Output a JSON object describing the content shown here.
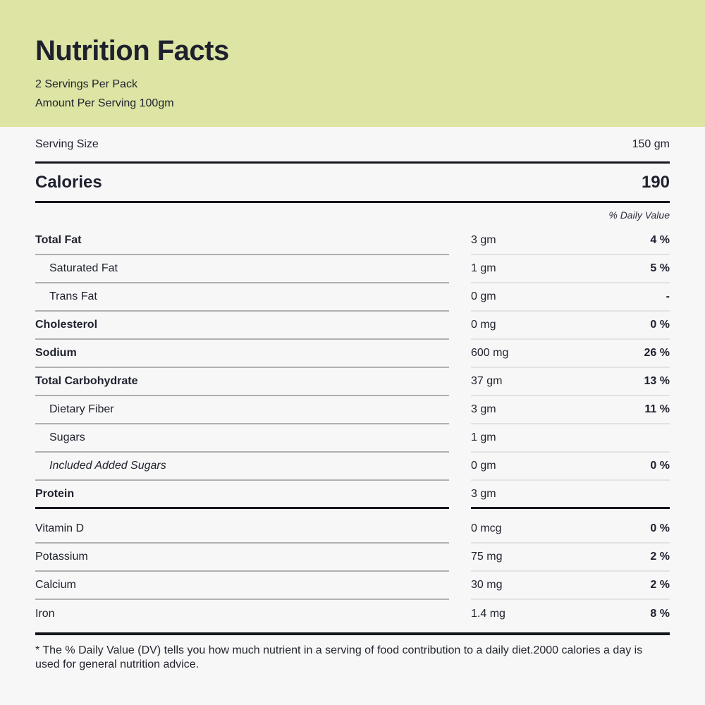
{
  "header": {
    "title": "Nutrition Facts",
    "servings_per_pack": "2 Servings Per Pack",
    "amount_per_serving": "Amount Per Serving 100gm",
    "background_color": "#dde4a4"
  },
  "serving_size": {
    "label": "Serving Size",
    "value": "150 gm"
  },
  "calories": {
    "label": "Calories",
    "value": "190"
  },
  "daily_value_header": "% Daily Value",
  "nutrients": [
    {
      "name": "Total Fat",
      "amount": "3 gm",
      "dv": "4 %",
      "style": "bold",
      "indent": false
    },
    {
      "name": "Saturated Fat",
      "amount": "1 gm",
      "dv": "5 %",
      "style": "regular",
      "indent": true
    },
    {
      "name": "Trans Fat",
      "amount": "0 gm",
      "dv": "-",
      "style": "regular",
      "indent": true
    },
    {
      "name": "Cholesterol",
      "amount": "0 mg",
      "dv": "0 %",
      "style": "bold",
      "indent": false
    },
    {
      "name": "Sodium",
      "amount": "600 mg",
      "dv": "26 %",
      "style": "bold",
      "indent": false
    },
    {
      "name": "Total Carbohydrate",
      "amount": "37 gm",
      "dv": "13 %",
      "style": "bold",
      "indent": false
    },
    {
      "name": "Dietary Fiber",
      "amount": "3 gm",
      "dv": "11 %",
      "style": "regular",
      "indent": true
    },
    {
      "name": "Sugars",
      "amount": "1 gm",
      "dv": "",
      "style": "regular",
      "indent": true
    },
    {
      "name": "Included Added Sugars",
      "amount": "0 gm",
      "dv": "0 %",
      "style": "italic",
      "indent": true
    },
    {
      "name": "Protein",
      "amount": "3 gm",
      "dv": "",
      "style": "bold",
      "indent": false,
      "thick_border": true
    },
    {
      "name": "Vitamin D",
      "amount": "0 mcg",
      "dv": "0 %",
      "style": "regular",
      "indent": false
    },
    {
      "name": "Potassium",
      "amount": "75 mg",
      "dv": "2 %",
      "style": "regular",
      "indent": false
    },
    {
      "name": "Calcium",
      "amount": "30 mg",
      "dv": "2 %",
      "style": "regular",
      "indent": false
    },
    {
      "name": "Iron",
      "amount": "1.4 mg",
      "dv": "8 %",
      "style": "regular",
      "indent": false,
      "no_divider": true
    }
  ],
  "footnote": "* The % Daily Value (DV) tells you how much nutrient in a serving of food contribution to a daily diet.2000 calories a day is used for general nutrition advice.",
  "colors": {
    "header_background": "#dde4a4",
    "page_background": "#f7f7f8",
    "text": "#21242e",
    "thick_rule": "#15171f",
    "divider_left": "#b0b0b0",
    "divider_right": "#e3e3e3"
  }
}
